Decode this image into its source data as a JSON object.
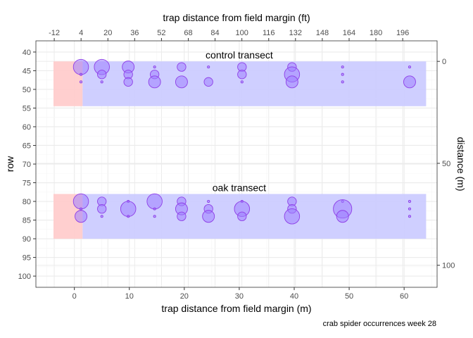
{
  "chart_data": {
    "type": "scatter",
    "caption": "crab spider occurrences week 28",
    "x_axis_bottom": {
      "label": "trap distance from field margin (m)",
      "range": [
        -7,
        66
      ],
      "ticks": [
        0,
        10,
        20,
        30,
        40,
        50,
        60
      ],
      "tick_labels": [
        "0",
        "10",
        "20",
        "30",
        "40",
        "50",
        "60"
      ]
    },
    "x_axis_top": {
      "label": "trap distance from field margin (ft)",
      "ticks_m": [
        -3.66,
        1.22,
        6.1,
        10.97,
        15.85,
        20.73,
        25.6,
        30.48,
        35.36,
        40.23,
        45.11,
        49.99,
        54.86,
        59.74
      ],
      "tick_labels": [
        "-12",
        "4",
        "20",
        "36",
        "52",
        "68",
        "84",
        "100",
        "116",
        "132",
        "148",
        "164",
        "180",
        "196"
      ]
    },
    "y_axis_left": {
      "label": "row",
      "range": [
        103,
        37
      ],
      "ticks": [
        40,
        45,
        50,
        55,
        60,
        65,
        70,
        75,
        80,
        85,
        90,
        95,
        100
      ],
      "tick_labels": [
        "40",
        "45",
        "50",
        "55",
        "60",
        "65",
        "70",
        "75",
        "80",
        "85",
        "90",
        "95",
        "100"
      ]
    },
    "y_axis_right": {
      "label": "distance (m)",
      "ticks_row": [
        42.5,
        69.8,
        97.1
      ],
      "tick_labels": [
        "0",
        "50",
        "100"
      ]
    },
    "grid": true,
    "transects": [
      {
        "name": "control transect",
        "margin_zone": {
          "x": [
            -3.8,
            1.5
          ],
          "row": [
            42.5,
            54.5
          ],
          "color": "#ffcccc"
        },
        "crop_zone": {
          "x": [
            1.5,
            64
          ],
          "row": [
            42.5,
            54.5
          ],
          "color": "#ccccff"
        },
        "points": [
          {
            "x": 1.2,
            "row": 44,
            "size": 5
          },
          {
            "x": 1.2,
            "row": 46,
            "size": 1
          },
          {
            "x": 1.2,
            "row": 48,
            "size": 1
          },
          {
            "x": 5,
            "row": 44,
            "size": 5
          },
          {
            "x": 5,
            "row": 46,
            "size": 3
          },
          {
            "x": 5,
            "row": 48,
            "size": 1
          },
          {
            "x": 9.8,
            "row": 44,
            "size": 4
          },
          {
            "x": 9.8,
            "row": 46,
            "size": 3
          },
          {
            "x": 9.8,
            "row": 48,
            "size": 3
          },
          {
            "x": 14.6,
            "row": 44,
            "size": 1
          },
          {
            "x": 14.6,
            "row": 46,
            "size": 3
          },
          {
            "x": 14.6,
            "row": 48,
            "size": 4
          },
          {
            "x": 19.5,
            "row": 44,
            "size": 3
          },
          {
            "x": 19.5,
            "row": 48,
            "size": 4
          },
          {
            "x": 24.4,
            "row": 44,
            "size": 1
          },
          {
            "x": 24.4,
            "row": 48,
            "size": 3
          },
          {
            "x": 30.5,
            "row": 44,
            "size": 3
          },
          {
            "x": 30.5,
            "row": 46,
            "size": 3
          },
          {
            "x": 30.5,
            "row": 48,
            "size": 1
          },
          {
            "x": 39.6,
            "row": 44,
            "size": 3
          },
          {
            "x": 39.6,
            "row": 46,
            "size": 5
          },
          {
            "x": 39.6,
            "row": 48,
            "size": 4
          },
          {
            "x": 48.8,
            "row": 44,
            "size": 1
          },
          {
            "x": 48.8,
            "row": 46,
            "size": 1
          },
          {
            "x": 48.8,
            "row": 48,
            "size": 1
          },
          {
            "x": 61,
            "row": 44,
            "size": 1
          },
          {
            "x": 61,
            "row": 48,
            "size": 4
          }
        ]
      },
      {
        "name": "oak transect",
        "margin_zone": {
          "x": [
            -3.8,
            1.5
          ],
          "row": [
            78,
            90
          ],
          "color": "#ffcccc"
        },
        "crop_zone": {
          "x": [
            1.5,
            64
          ],
          "row": [
            78,
            90
          ],
          "color": "#ccccff"
        },
        "points": [
          {
            "x": 1.2,
            "row": 80,
            "size": 5
          },
          {
            "x": 1.2,
            "row": 82,
            "size": 1
          },
          {
            "x": 1.2,
            "row": 84,
            "size": 4
          },
          {
            "x": 5,
            "row": 80,
            "size": 3
          },
          {
            "x": 5,
            "row": 82,
            "size": 3
          },
          {
            "x": 5,
            "row": 84,
            "size": 1
          },
          {
            "x": 9.8,
            "row": 80,
            "size": 1
          },
          {
            "x": 9.8,
            "row": 82,
            "size": 5
          },
          {
            "x": 9.8,
            "row": 84,
            "size": 1
          },
          {
            "x": 14.6,
            "row": 80,
            "size": 5
          },
          {
            "x": 14.6,
            "row": 82,
            "size": 1
          },
          {
            "x": 14.6,
            "row": 84,
            "size": 1
          },
          {
            "x": 19.5,
            "row": 80,
            "size": 3
          },
          {
            "x": 19.5,
            "row": 82,
            "size": 4
          },
          {
            "x": 19.5,
            "row": 84,
            "size": 3
          },
          {
            "x": 24.4,
            "row": 80,
            "size": 1
          },
          {
            "x": 24.4,
            "row": 82,
            "size": 3
          },
          {
            "x": 24.4,
            "row": 84,
            "size": 4
          },
          {
            "x": 30.5,
            "row": 80,
            "size": 1
          },
          {
            "x": 30.5,
            "row": 82,
            "size": 5
          },
          {
            "x": 30.5,
            "row": 84,
            "size": 3
          },
          {
            "x": 39.6,
            "row": 80,
            "size": 3
          },
          {
            "x": 39.6,
            "row": 82,
            "size": 3
          },
          {
            "x": 39.6,
            "row": 84,
            "size": 5
          },
          {
            "x": 48.8,
            "row": 80,
            "size": 1
          },
          {
            "x": 48.8,
            "row": 82,
            "size": 6
          },
          {
            "x": 48.8,
            "row": 84,
            "size": 4
          },
          {
            "x": 61,
            "row": 80,
            "size": 1
          },
          {
            "x": 61,
            "row": 82,
            "size": 1
          },
          {
            "x": 61,
            "row": 84,
            "size": 1
          }
        ]
      }
    ],
    "colors": {
      "point_fill": "#9f7fff",
      "point_stroke": "#8f3fe7",
      "panel_border": "#333333",
      "grid_major": "#ebebeb",
      "grid_minor": "#f5f5f5"
    }
  }
}
